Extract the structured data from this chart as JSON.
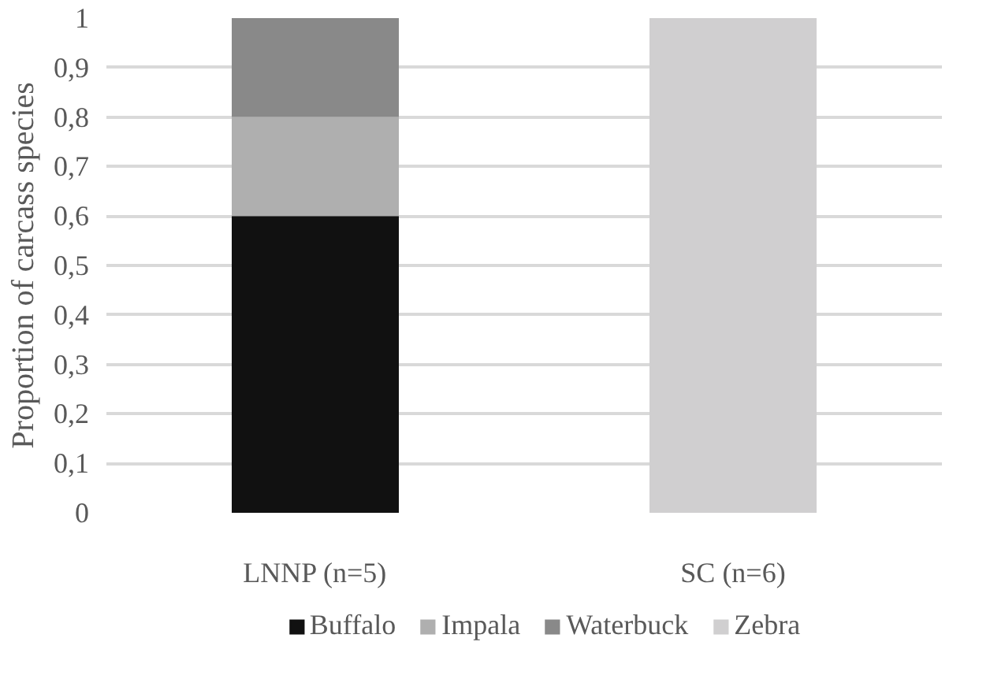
{
  "chart_data": {
    "type": "bar",
    "stacked": true,
    "ylabel": "Proportion of carcass species",
    "categories": [
      "LNNP (n=5)",
      "SC (n=6)"
    ],
    "series": [
      {
        "name": "Buffalo",
        "color": "#111111",
        "values": [
          0.6,
          0
        ]
      },
      {
        "name": "Impala",
        "color": "#afafaf",
        "values": [
          0.2,
          0
        ]
      },
      {
        "name": "Waterbuck",
        "color": "#898989",
        "values": [
          0.2,
          0
        ]
      },
      {
        "name": "Zebra",
        "color": "#d0cfd0",
        "values": [
          0,
          1
        ]
      }
    ],
    "ylim": [
      0,
      1
    ],
    "yticks": [
      0,
      {
        "value": 0.1,
        "label": "0,1"
      },
      {
        "value": 0.2,
        "label": "0,2"
      },
      {
        "value": 0.3,
        "label": "0,3"
      },
      {
        "value": 0.4,
        "label": "0,4"
      },
      {
        "value": 0.5,
        "label": "0,5"
      },
      {
        "value": 0.6,
        "label": "0,6"
      },
      {
        "value": 0.7,
        "label": "0,7"
      },
      {
        "value": 0.8,
        "label": "0,8"
      },
      {
        "value": 0.9,
        "label": "0,9"
      },
      1
    ],
    "grid": "y",
    "legend": "bottom"
  }
}
